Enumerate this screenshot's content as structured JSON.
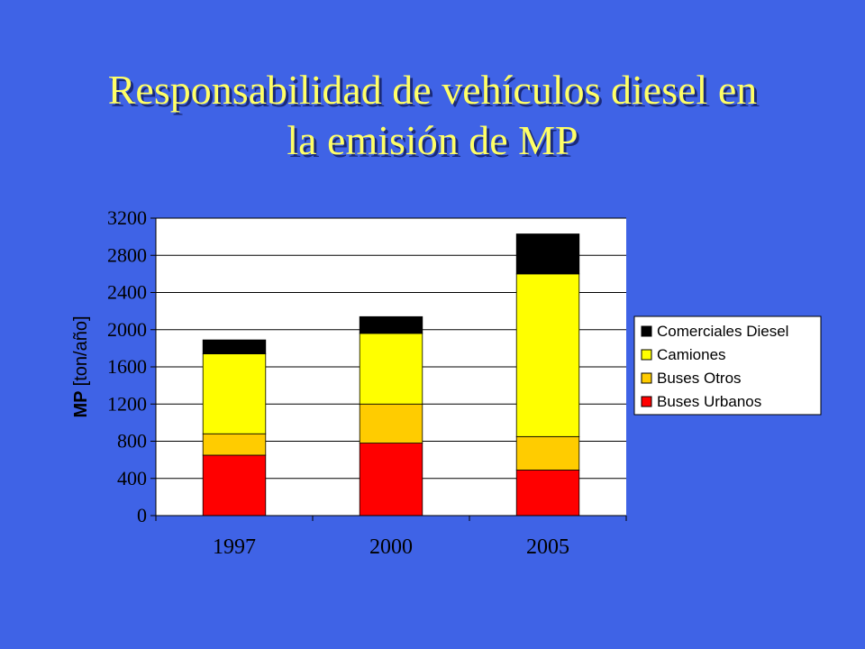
{
  "slide": {
    "title_line1": "Responsabilidad de vehículos diesel en",
    "title_line2": "la emisión de MP"
  },
  "colors": {
    "background": "#3F63E6",
    "title": "#FFFF66",
    "plot_area": "#FFFFFF"
  },
  "chart_data": {
    "type": "bar",
    "stacked": true,
    "categories": [
      "1997",
      "2000",
      "2005"
    ],
    "ylabel_main": "MP ",
    "ylabel_unit": "[ton/año]",
    "ylim": [
      0,
      3200
    ],
    "yticks": [
      0,
      400,
      800,
      1200,
      1600,
      2000,
      2400,
      2800,
      3200
    ],
    "grid": true,
    "legend_position": "right",
    "series": [
      {
        "name": "Buses Urbanos",
        "color": "#FF0000",
        "values": [
          650,
          780,
          490
        ]
      },
      {
        "name": "Buses Otros",
        "color": "#FFCC00",
        "values": [
          230,
          420,
          360
        ]
      },
      {
        "name": "Camiones",
        "color": "#FFFF00",
        "values": [
          860,
          760,
          1750
        ]
      },
      {
        "name": "Comerciales Diesel",
        "color": "#000000",
        "values": [
          150,
          180,
          430
        ]
      }
    ],
    "legend_order": [
      "Comerciales Diesel",
      "Camiones",
      "Buses Otros",
      "Buses Urbanos"
    ]
  }
}
